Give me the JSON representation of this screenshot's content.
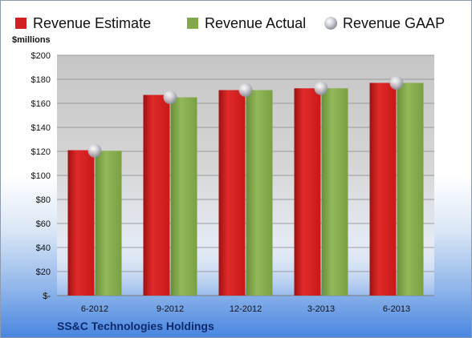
{
  "chart_data": {
    "type": "bar",
    "categories": [
      "6-2012",
      "9-2012",
      "12-2012",
      "3-2013",
      "6-2013"
    ],
    "series": [
      {
        "name": "Revenue Estimate",
        "values": [
          121,
          167,
          171,
          172.5,
          177
        ],
        "color": "#d42020"
      },
      {
        "name": "Revenue Actual",
        "values": [
          120.5,
          165,
          171,
          172.5,
          177
        ],
        "color": "#82a84a"
      },
      {
        "name": "Revenue GAAP",
        "values": [
          120.5,
          165,
          171,
          172.5,
          177
        ],
        "color": "#c0c4cc",
        "marker": "circle"
      }
    ],
    "yunit": "$millions",
    "ylim": [
      0,
      200
    ],
    "yticks": [
      0,
      20,
      40,
      60,
      80,
      100,
      120,
      140,
      160,
      180,
      200
    ],
    "ytick_labels": [
      "$-",
      "$20",
      "$40",
      "$60",
      "$80",
      "$100",
      "$120",
      "$140",
      "$160",
      "$180",
      "$200"
    ],
    "grid": true,
    "legend": "top"
  },
  "company": "SS&C Technologies Holdings"
}
